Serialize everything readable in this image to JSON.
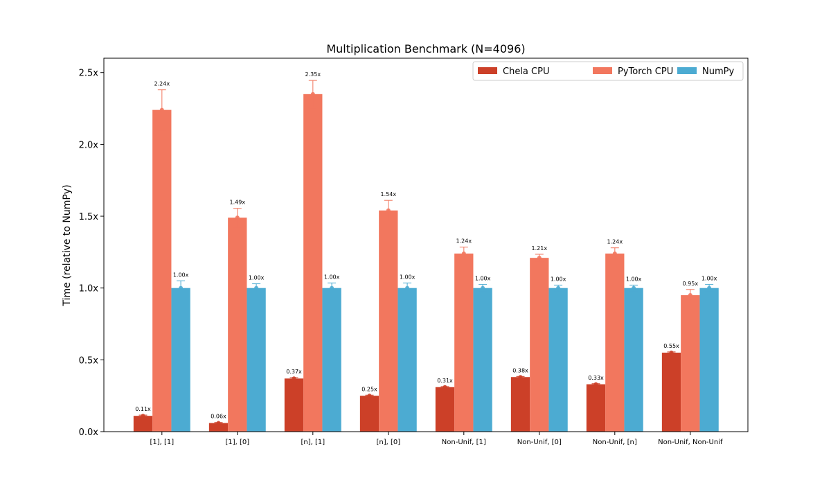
{
  "chart_data": {
    "type": "bar",
    "title": "Multiplication Benchmark (N=4096)",
    "xlabel": "",
    "ylabel": "Time (relative to NumPy)",
    "ylim": [
      0,
      2.6
    ],
    "yticks": [
      0.0,
      0.5,
      1.0,
      1.5,
      2.0,
      2.5
    ],
    "ytick_labels": [
      "0.0x",
      "0.5x",
      "1.0x",
      "1.5x",
      "2.0x",
      "2.5x"
    ],
    "grid": false,
    "legend_position": "top-right",
    "categories": [
      "[1], [1]",
      "[1], [0]",
      "[n], [1]",
      "[n], [0]",
      "Non-Unif, [1]",
      "Non-Unif, [0]",
      "Non-Unif, [n]",
      "Non-Unif, Non-Unif"
    ],
    "series": [
      {
        "name": "Chela CPU",
        "color": "#cc4028",
        "values": [
          0.11,
          0.06,
          0.37,
          0.25,
          0.31,
          0.38,
          0.33,
          0.55
        ],
        "labels": [
          "0.11x",
          "0.06x",
          "0.37x",
          "0.25x",
          "0.31x",
          "0.38x",
          "0.33x",
          "0.55x"
        ],
        "errors": [
          0.005,
          0.004,
          0.006,
          0.004,
          0.004,
          0.004,
          0.004,
          0.005
        ]
      },
      {
        "name": "PyTorch CPU",
        "color": "#f2775e",
        "values": [
          2.24,
          1.49,
          2.35,
          1.54,
          1.24,
          1.21,
          1.24,
          0.95
        ],
        "labels": [
          "2.24x",
          "1.49x",
          "2.35x",
          "1.54x",
          "1.24x",
          "1.21x",
          "1.24x",
          "0.95x"
        ],
        "errors": [
          0.14,
          0.065,
          0.095,
          0.07,
          0.045,
          0.025,
          0.04,
          0.04
        ]
      },
      {
        "name": "NumPy",
        "color": "#4cabd2",
        "values": [
          1.0,
          1.0,
          1.0,
          1.0,
          1.0,
          1.0,
          1.0,
          1.0
        ],
        "labels": [
          "1.00x",
          "1.00x",
          "1.00x",
          "1.00x",
          "1.00x",
          "1.00x",
          "1.00x",
          "1.00x"
        ],
        "errors": [
          0.05,
          0.03,
          0.035,
          0.035,
          0.025,
          0.02,
          0.02,
          0.025
        ]
      }
    ]
  }
}
